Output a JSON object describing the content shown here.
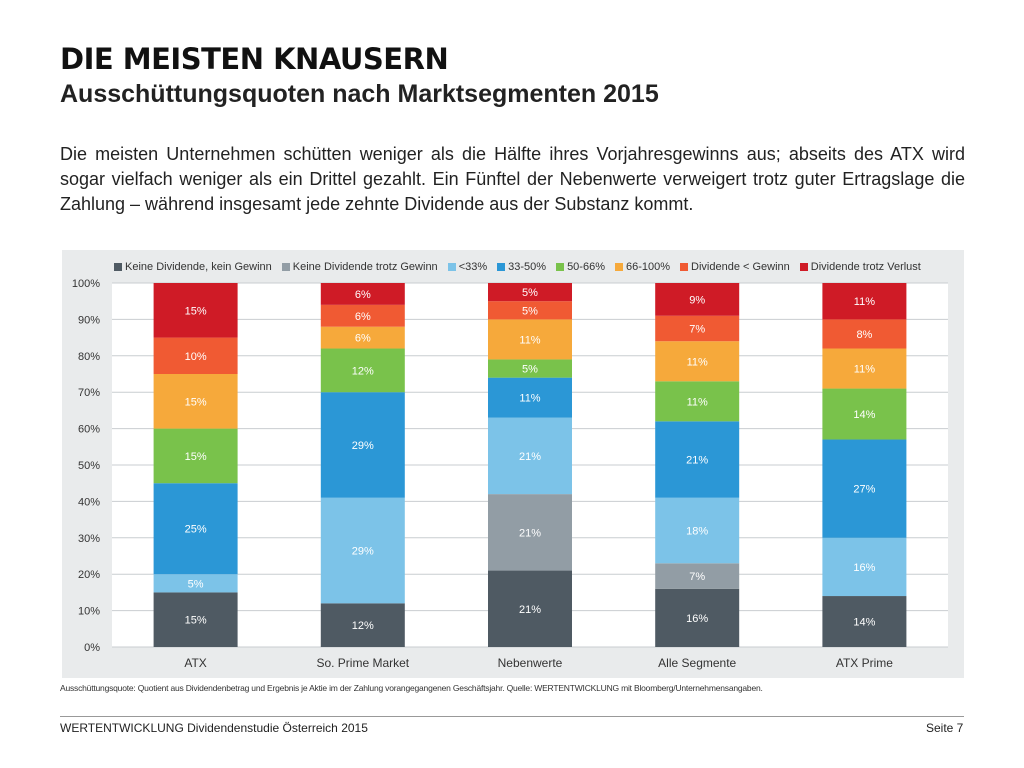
{
  "header": {
    "title": "DIE MEISTEN KNAUSERN",
    "subtitle": "Ausschüttungsquoten nach Marktsegmenten 2015"
  },
  "intro_text": "Die meisten Unternehmen schütten weniger als die Hälfte ihres Vorjahresgewinns aus; abseits des ATX wird sogar vielfach weniger als ein Drittel gezahlt. Ein Fünftel der Nebenwerte verweigert trotz guter Ertragslage die Zahlung – während insgesamt jede zehnte Dividende aus der Substanz kommt.",
  "chart_data": {
    "type": "bar",
    "stacked": true,
    "title": "",
    "xlabel": "",
    "ylabel": "",
    "ylim": [
      0,
      100
    ],
    "y_ticks": [
      "0%",
      "10%",
      "20%",
      "30%",
      "40%",
      "50%",
      "60%",
      "70%",
      "80%",
      "90%",
      "100%"
    ],
    "grid": true,
    "legend_position": "top",
    "categories": [
      "ATX",
      "So. Prime Market",
      "Nebenwerte",
      "Alle Segmente",
      "ATX Prime"
    ],
    "series": [
      {
        "name": "Keine Dividende, kein Gewinn",
        "color": "#4f5a63",
        "values": [
          15,
          12,
          21,
          16,
          14
        ]
      },
      {
        "name": "Keine Dividende trotz Gewinn",
        "color": "#929da5",
        "values": [
          0,
          0,
          21,
          7,
          0
        ]
      },
      {
        "name": "<33%",
        "color": "#7cc3e8",
        "values": [
          5,
          29,
          21,
          18,
          16
        ]
      },
      {
        "name": "33-50%",
        "color": "#2b97d6",
        "values": [
          25,
          29,
          11,
          21,
          27
        ]
      },
      {
        "name": "50-66%",
        "color": "#79c24b",
        "values": [
          15,
          12,
          5,
          11,
          14
        ]
      },
      {
        "name": "66-100%",
        "color": "#f6a93b",
        "values": [
          15,
          6,
          11,
          11,
          11
        ]
      },
      {
        "name": "Dividende < Gewinn",
        "color": "#f05a33",
        "values": [
          10,
          6,
          5,
          7,
          8
        ]
      },
      {
        "name": "Dividende trotz Verlust",
        "color": "#cf1b26",
        "values": [
          15,
          6,
          5,
          9,
          11
        ]
      }
    ]
  },
  "footnote": "Ausschüttungsquote: Quotient aus Dividendenbetrag und Ergebnis je Aktie im der Zahlung vorangegangenen Geschäftsjahr. Quelle: WERTENTWICKLUNG mit Bloomberg/Unternehmensangaben.",
  "footer": {
    "left": "WERTENTWICKLUNG Dividendenstudie Österreich 2015",
    "right": "Seite 7"
  }
}
